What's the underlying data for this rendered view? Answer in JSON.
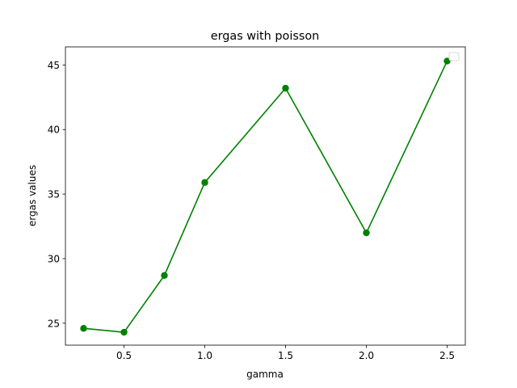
{
  "chart_data": {
    "type": "line",
    "title": "ergas with poisson",
    "xlabel": "gamma",
    "ylabel": "ergas values",
    "xlim": [
      0.1375,
      2.6125
    ],
    "ylim": [
      23.3,
      46.4
    ],
    "xticks": [
      0.5,
      1.0,
      1.5,
      2.0,
      2.5
    ],
    "xtick_labels": [
      "0.5",
      "1.0",
      "1.5",
      "2.0",
      "2.5"
    ],
    "yticks": [
      25,
      30,
      35,
      40,
      45
    ],
    "ytick_labels": [
      "25",
      "30",
      "35",
      "40",
      "45"
    ],
    "grid": false,
    "legend": {
      "location": "top-right",
      "entries": []
    },
    "series": [
      {
        "color": "#008000",
        "marker": "circle",
        "x": [
          0.25,
          0.5,
          0.75,
          1.0,
          1.5,
          2.0,
          2.5
        ],
        "y": [
          24.6,
          24.3,
          28.7,
          35.9,
          43.2,
          32.0,
          45.3
        ]
      }
    ]
  }
}
